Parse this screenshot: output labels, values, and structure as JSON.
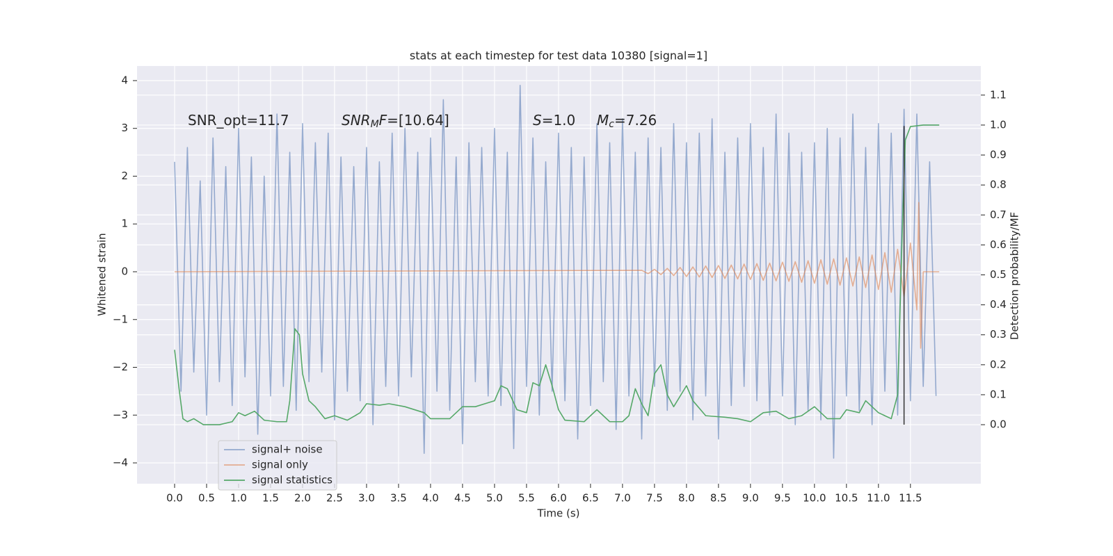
{
  "chart_data": {
    "type": "line",
    "title": "stats at each timestep for test data 10380 [signal=1]",
    "xlabel": "Time (s)",
    "ylabel": "Whitened strain",
    "y2label": "Detection probability/MF",
    "xlim": [
      -0.587,
      12.6
    ],
    "ylim": [
      -4.436,
      4.305
    ],
    "y2lim": [
      -0.197,
      1.197
    ],
    "grid": true,
    "legend": "lower left",
    "xticks": [
      {
        "value": 0,
        "label": "0.0"
      },
      0.5,
      {
        "value": 1,
        "label": "1.0"
      },
      1.5,
      {
        "value": 2,
        "label": "2.0"
      },
      2.5,
      {
        "value": 3,
        "label": "3.0"
      },
      3.5,
      {
        "value": 4,
        "label": "4.0"
      },
      4.5,
      {
        "value": 5,
        "label": "5.0"
      },
      5.5,
      {
        "value": 6,
        "label": "6.0"
      },
      6.5,
      {
        "value": 7,
        "label": "7.0"
      },
      7.5,
      {
        "value": 8,
        "label": "8.0"
      },
      8.5,
      {
        "value": 9,
        "label": "9.0"
      },
      9.5,
      {
        "value": 10,
        "label": "10.0"
      },
      10.5,
      {
        "value": 11,
        "label": "11.0"
      },
      11.5
    ],
    "yticks": [
      {
        "value": -4,
        "label": "−4"
      },
      {
        "value": -3,
        "label": "−3"
      },
      {
        "value": -2,
        "label": "−2"
      },
      {
        "value": -1,
        "label": "−1"
      },
      0,
      1,
      2,
      3,
      4
    ],
    "y2ticks": [
      {
        "value": 0,
        "label": "0.0"
      },
      0.1,
      0.2,
      0.3,
      0.4,
      0.5,
      0.6,
      0.7,
      0.8,
      0.9,
      {
        "value": 1,
        "label": "1.0"
      },
      1.1
    ],
    "annotations": [
      {
        "parts": [
          {
            "text": "SNR_opt=11.7"
          }
        ]
      },
      {
        "parts": [
          {
            "text": "SNR",
            "italic": true
          },
          {
            "text": "M",
            "italic": true,
            "sub": true
          },
          {
            "text": "F",
            "italic": true
          },
          {
            "text": "=[10.64]"
          }
        ]
      },
      {
        "parts": [
          {
            "text": "S",
            "italic": true
          },
          {
            "text": "=1.0"
          }
        ]
      },
      {
        "parts": [
          {
            "text": "M",
            "italic": true
          },
          {
            "text": "c",
            "italic": true,
            "sub": true
          },
          {
            "text": "=7.26"
          }
        ]
      }
    ],
    "vlines": [
      {
        "x": 11.4,
        "ymin": -3.2,
        "ymax": 3.05,
        "color": "#333333"
      }
    ],
    "series": [
      {
        "name": "signal+ noise",
        "color": "#4c72b0",
        "alpha": 0.55,
        "x": [
          0,
          0.1,
          0.2,
          0.3,
          0.4,
          0.5,
          0.6,
          0.7,
          0.8,
          0.9,
          1,
          1.1,
          1.2,
          1.3,
          1.4,
          1.5,
          1.6,
          1.7,
          1.8,
          1.9,
          2,
          2.1,
          2.2,
          2.3,
          2.4,
          2.5,
          2.6,
          2.7,
          2.8,
          2.9,
          3,
          3.1,
          3.2,
          3.3,
          3.4,
          3.5,
          3.6,
          3.7,
          3.8,
          3.9,
          4,
          4.1,
          4.2,
          4.3,
          4.4,
          4.5,
          4.6,
          4.7,
          4.8,
          4.9,
          5,
          5.1,
          5.2,
          5.3,
          5.4,
          5.5,
          5.6,
          5.7,
          5.8,
          5.9,
          6,
          6.1,
          6.2,
          6.3,
          6.4,
          6.5,
          6.6,
          6.7,
          6.8,
          6.9,
          7,
          7.1,
          7.2,
          7.3,
          7.4,
          7.5,
          7.6,
          7.7,
          7.8,
          7.9,
          8,
          8.1,
          8.2,
          8.3,
          8.4,
          8.5,
          8.6,
          8.7,
          8.8,
          8.9,
          9,
          9.1,
          9.2,
          9.3,
          9.4,
          9.5,
          9.6,
          9.7,
          9.8,
          9.9,
          10,
          10.1,
          10.2,
          10.3,
          10.4,
          10.5,
          10.6,
          10.7,
          10.8,
          10.9,
          11,
          11.1,
          11.2,
          11.3,
          11.4,
          11.5,
          11.6,
          11.7,
          11.8,
          11.9
        ],
        "values": [
          2.3,
          -2.5,
          2.6,
          -2.1,
          1.9,
          -3.0,
          2.8,
          -2.3,
          2.2,
          -2.8,
          3.0,
          -2.2,
          2.4,
          -3.4,
          2.0,
          -2.6,
          3.3,
          -2.4,
          2.5,
          -2.9,
          3.1,
          -2.3,
          2.7,
          -2.1,
          2.9,
          -3.1,
          2.4,
          -2.5,
          2.2,
          -2.7,
          2.6,
          -3.2,
          2.3,
          -2.4,
          2.9,
          -2.6,
          3.0,
          -2.2,
          2.5,
          -3.8,
          2.8,
          -2.5,
          3.6,
          -2.9,
          2.4,
          -3.6,
          2.7,
          -2.3,
          2.6,
          -2.6,
          3.0,
          -2.8,
          2.5,
          -3.7,
          3.9,
          -2.4,
          2.8,
          -3.0,
          2.3,
          -2.5,
          2.9,
          -2.7,
          2.6,
          -3.5,
          2.4,
          -2.8,
          3.1,
          -2.3,
          2.7,
          -3.3,
          3.2,
          -2.6,
          2.5,
          -3.5,
          2.8,
          -2.4,
          2.6,
          -2.9,
          3.1,
          -2.5,
          2.7,
          -3.1,
          2.9,
          -2.6,
          3.2,
          -3.5,
          2.5,
          -2.8,
          2.8,
          -2.4,
          3.1,
          -2.7,
          2.6,
          -3.0,
          3.3,
          -2.6,
          2.9,
          -3.2,
          2.5,
          -2.9,
          2.7,
          -3.1,
          3.0,
          -3.9,
          2.8,
          -2.6,
          3.3,
          -2.9,
          2.6,
          -3.2,
          3.1,
          -2.5,
          2.9,
          -3.0,
          3.4,
          -2.7,
          3.3,
          -2.4,
          2.3,
          -2.6
        ]
      },
      {
        "name": "signal only",
        "color": "#dd8452",
        "alpha": 0.6,
        "x": [
          0,
          7.3,
          7.4,
          7.5,
          7.6,
          7.7,
          7.8,
          7.9,
          8,
          8.1,
          8.2,
          8.3,
          8.4,
          8.5,
          8.6,
          8.7,
          8.8,
          8.9,
          9,
          9.1,
          9.2,
          9.3,
          9.4,
          9.5,
          9.6,
          9.7,
          9.8,
          9.9,
          10,
          10.1,
          10.2,
          10.3,
          10.4,
          10.5,
          10.6,
          10.7,
          10.8,
          10.9,
          11,
          11.1,
          11.2,
          11.3,
          11.4,
          11.5,
          11.6,
          11.63,
          11.66,
          11.7,
          11.95
        ],
        "values": [
          0,
          0.03,
          -0.04,
          0.05,
          -0.06,
          0.07,
          -0.08,
          0.09,
          -0.1,
          0.1,
          -0.11,
          0.12,
          -0.12,
          0.13,
          -0.14,
          0.14,
          -0.15,
          0.16,
          -0.16,
          0.17,
          -0.18,
          0.18,
          -0.19,
          0.2,
          -0.2,
          0.21,
          -0.22,
          0.23,
          -0.24,
          0.25,
          -0.26,
          0.27,
          -0.28,
          0.29,
          -0.3,
          0.31,
          -0.33,
          0.35,
          -0.37,
          0.4,
          -0.43,
          0.47,
          -0.52,
          0.6,
          -0.8,
          1.45,
          -1.6,
          0,
          0
        ]
      },
      {
        "name": "signal statistics",
        "color": "#55a868",
        "alpha": 1,
        "axis": "y2",
        "x": [
          0,
          0.07,
          0.13,
          0.2,
          0.3,
          0.45,
          0.7,
          0.9,
          1,
          1.1,
          1.25,
          1.4,
          1.6,
          1.75,
          1.8,
          1.88,
          1.95,
          2,
          2.1,
          2.2,
          2.35,
          2.5,
          2.7,
          2.9,
          3,
          3.2,
          3.35,
          3.6,
          3.9,
          4,
          4.3,
          4.5,
          4.7,
          4.85,
          5,
          5.1,
          5.2,
          5.35,
          5.5,
          5.6,
          5.7,
          5.8,
          5.9,
          6,
          6.1,
          6.4,
          6.6,
          6.8,
          7,
          7.1,
          7.2,
          7.3,
          7.4,
          7.5,
          7.6,
          7.7,
          7.8,
          8,
          8.1,
          8.3,
          8.6,
          8.8,
          9,
          9.2,
          9.4,
          9.6,
          9.8,
          10,
          10.2,
          10.4,
          10.5,
          10.7,
          10.8,
          11,
          11.2,
          11.3,
          11.38,
          11.42,
          11.5,
          11.7,
          11.95
        ],
        "values": [
          0.25,
          0.12,
          0.02,
          0.01,
          0.02,
          0.0,
          0.0,
          0.01,
          0.04,
          0.03,
          0.045,
          0.015,
          0.01,
          0.01,
          0.08,
          0.32,
          0.3,
          0.17,
          0.08,
          0.06,
          0.02,
          0.03,
          0.015,
          0.04,
          0.07,
          0.065,
          0.07,
          0.06,
          0.04,
          0.02,
          0.02,
          0.06,
          0.06,
          0.07,
          0.08,
          0.13,
          0.12,
          0.05,
          0.04,
          0.14,
          0.13,
          0.2,
          0.13,
          0.05,
          0.015,
          0.01,
          0.05,
          0.01,
          0.01,
          0.03,
          0.12,
          0.07,
          0.03,
          0.17,
          0.2,
          0.1,
          0.06,
          0.13,
          0.08,
          0.03,
          0.025,
          0.02,
          0.01,
          0.04,
          0.045,
          0.02,
          0.03,
          0.06,
          0.02,
          0.02,
          0.05,
          0.04,
          0.08,
          0.04,
          0.02,
          0.1,
          0.7,
          0.95,
          0.995,
          1.0,
          1.0
        ]
      }
    ]
  }
}
